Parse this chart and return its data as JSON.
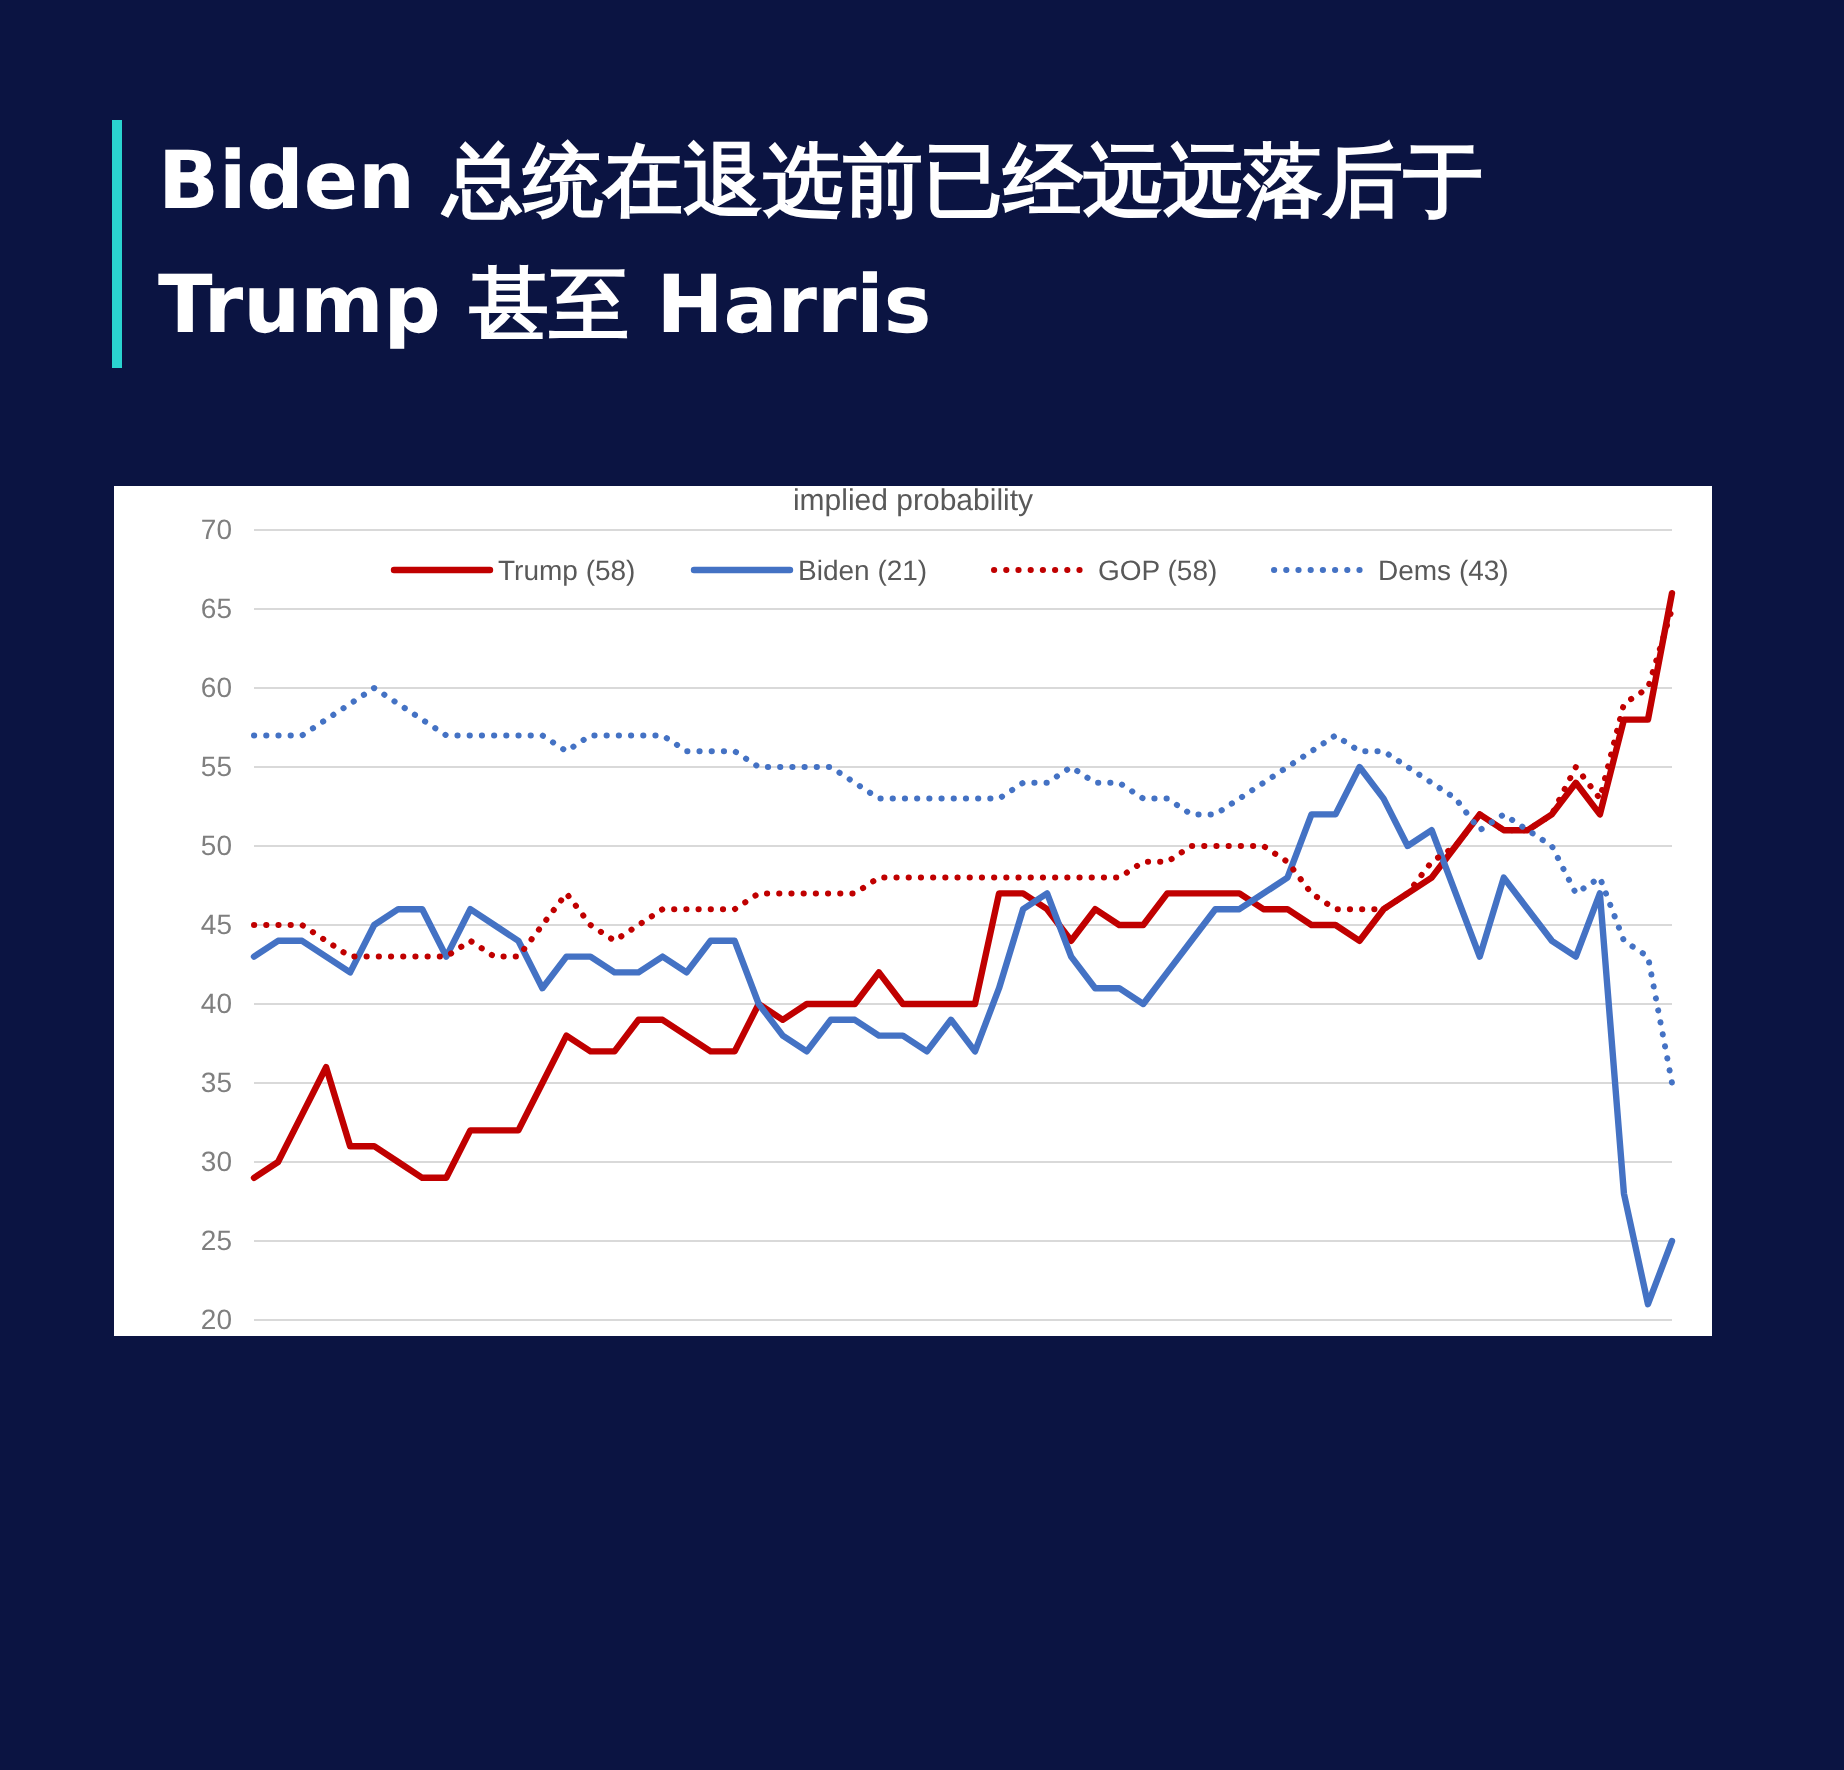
{
  "chart_data": {
    "type": "line",
    "title": "Biden 总统在退选前已经远远落后于 Trump 甚至 Harris",
    "subtitle": "implied probability",
    "categories": [
      null,
      null,
      null,
      null,
      null,
      null,
      null,
      null,
      null,
      null,
      null,
      null,
      null,
      null,
      null,
      null,
      null,
      null,
      null,
      null,
      null,
      null,
      null,
      null,
      null,
      null,
      null,
      null,
      null,
      null,
      null,
      null,
      null,
      null,
      null,
      null,
      null,
      null,
      null,
      null,
      null,
      null,
      null,
      null,
      null,
      null,
      null,
      null,
      null,
      null,
      null,
      null,
      null,
      null,
      null,
      null,
      null,
      null,
      null,
      null
    ],
    "ylim": [
      20,
      70
    ],
    "yticks": [
      20,
      25,
      30,
      35,
      40,
      45,
      50,
      55,
      60,
      65,
      70
    ],
    "grid": "y",
    "legend": "top",
    "marker": "none",
    "series": [
      {
        "name": "Trump (58)",
        "color": "#c00000",
        "line_style": "solid",
        "values": [
          29,
          30,
          33,
          36,
          31,
          31,
          30,
          29,
          29,
          32,
          32,
          32,
          35,
          38,
          37,
          37,
          39,
          39,
          38,
          37,
          37,
          40,
          39,
          40,
          40,
          40,
          42,
          40,
          40,
          40,
          40,
          47,
          47,
          46,
          44,
          46,
          45,
          45,
          47,
          47,
          47,
          47,
          46,
          46,
          45,
          45,
          44,
          46,
          47,
          48,
          50,
          52,
          51,
          51,
          52,
          54,
          52,
          58,
          58,
          66
        ]
      },
      {
        "name": "Biden (21)",
        "color": "#4472c4",
        "line_style": "solid",
        "values": [
          43,
          44,
          44,
          43,
          42,
          45,
          46,
          46,
          43,
          46,
          45,
          44,
          41,
          43,
          43,
          42,
          42,
          43,
          42,
          44,
          44,
          40,
          38,
          37,
          39,
          39,
          38,
          38,
          37,
          39,
          37,
          41,
          46,
          47,
          43,
          41,
          41,
          40,
          42,
          44,
          46,
          46,
          47,
          48,
          52,
          52,
          55,
          53,
          50,
          51,
          47,
          43,
          48,
          46,
          44,
          43,
          47,
          28,
          21,
          25
        ]
      },
      {
        "name": "GOP (58)",
        "color": "#c00000",
        "line_style": "dotted",
        "values": [
          45,
          45,
          45,
          44,
          43,
          43,
          43,
          43,
          43,
          44,
          43,
          43,
          45,
          47,
          45,
          44,
          45,
          46,
          46,
          46,
          46,
          47,
          47,
          47,
          47,
          47,
          48,
          48,
          48,
          48,
          48,
          48,
          48,
          48,
          48,
          48,
          48,
          49,
          49,
          50,
          50,
          50,
          50,
          49,
          47,
          46,
          46,
          46,
          47,
          49,
          50,
          52,
          51,
          51,
          52,
          55,
          53,
          59,
          60,
          65
        ]
      },
      {
        "name": "Dems (43)",
        "color": "#4472c4",
        "line_style": "dotted",
        "values": [
          57,
          57,
          57,
          58,
          59,
          60,
          59,
          58,
          57,
          57,
          57,
          57,
          57,
          56,
          57,
          57,
          57,
          57,
          56,
          56,
          56,
          55,
          55,
          55,
          55,
          54,
          53,
          53,
          53,
          53,
          53,
          53,
          54,
          54,
          55,
          54,
          54,
          53,
          53,
          52,
          52,
          53,
          54,
          55,
          56,
          57,
          56,
          56,
          55,
          54,
          53,
          51,
          52,
          51,
          50,
          47,
          48,
          44,
          43,
          35
        ]
      }
    ]
  }
}
